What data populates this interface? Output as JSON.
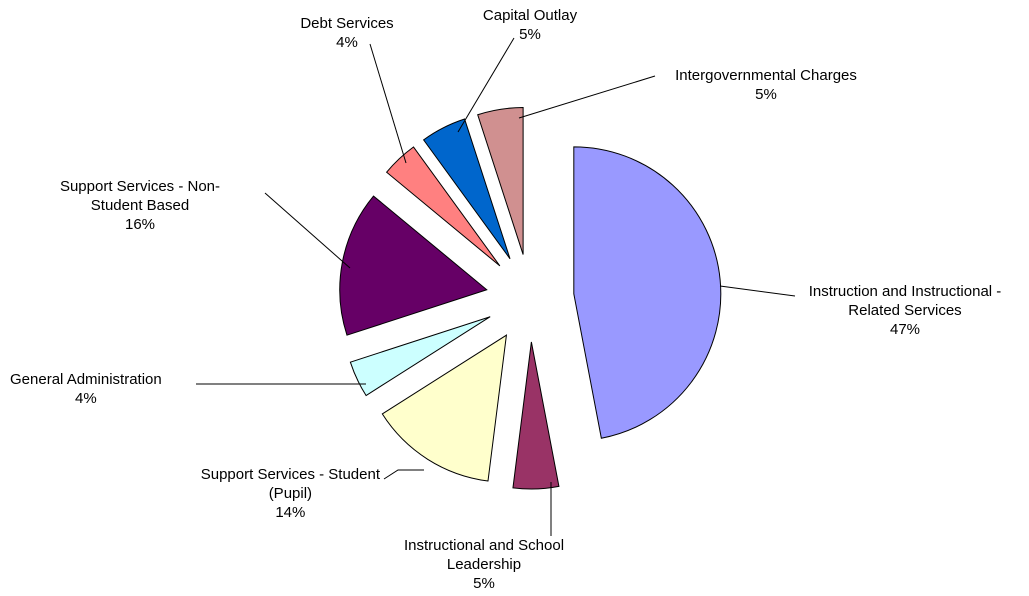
{
  "chart_data": {
    "type": "pie",
    "title": "",
    "legend": "none",
    "start": "12 o'clock, clockwise",
    "slices": [
      {
        "label": "Instruction and Instructional - Related Services",
        "label_lines": [
          "Instruction and Instructional -",
          "Related Services"
        ],
        "percent_label": "47%",
        "value": 47,
        "color": "#9999FF"
      },
      {
        "label": "Instructional and School Leadership",
        "label_lines": [
          "Instructional and School",
          "Leadership"
        ],
        "percent_label": "5%",
        "value": 5,
        "color": "#993366"
      },
      {
        "label": "Support Services - Student (Pupil)",
        "label_lines": [
          "Support Services - Student",
          "(Pupil)"
        ],
        "percent_label": "14%",
        "value": 14,
        "color": "#FFFFCC"
      },
      {
        "label": "General Administration",
        "label_lines": [
          "General Administration"
        ],
        "percent_label": "4%",
        "value": 4,
        "color": "#CCFFFF"
      },
      {
        "label": "Support Services - Non-Student Based",
        "label_lines": [
          "Support Services - Non-",
          "Student Based"
        ],
        "percent_label": "16%",
        "value": 16,
        "color": "#660066"
      },
      {
        "label": "Debt Services",
        "label_lines": [
          "Debt Services"
        ],
        "percent_label": "4%",
        "value": 4,
        "color": "#FF8080"
      },
      {
        "label": "Capital Outlay",
        "label_lines": [
          "Capital Outlay"
        ],
        "percent_label": "5%",
        "value": 5,
        "color": "#0066CC"
      },
      {
        "label": "Intergovernmental Charges",
        "label_lines": [
          "Intergovernmental Charges"
        ],
        "percent_label": "5%",
        "value": 5,
        "color": "#D09090"
      }
    ]
  }
}
